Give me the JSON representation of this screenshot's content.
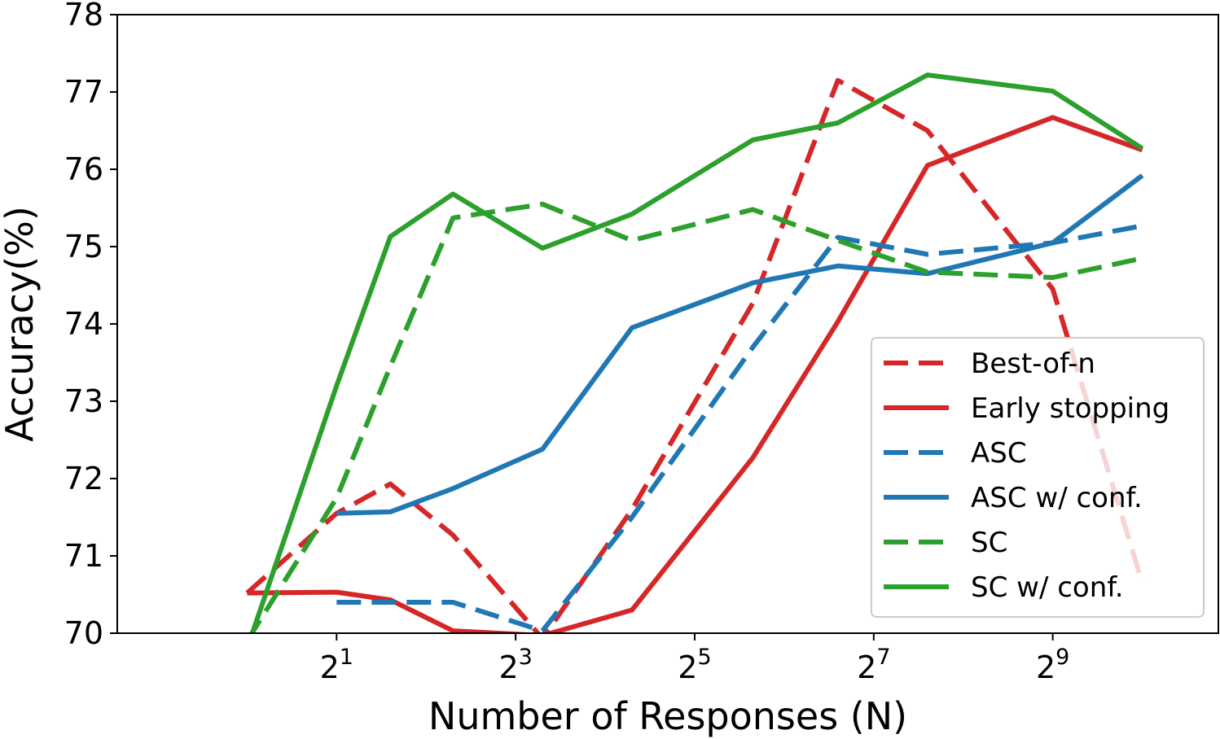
{
  "chart_data": {
    "type": "line",
    "title": "",
    "xlabel": "Number of Responses (N)",
    "ylabel": "Accuracy(%)",
    "xscale": "log2",
    "xlim_log2": [
      -1.45,
      10.85
    ],
    "ylim": [
      70,
      78
    ],
    "yticks": [
      70,
      71,
      72,
      73,
      74,
      75,
      76,
      77,
      78
    ],
    "xticks": [
      {
        "base": "2",
        "exp": "1",
        "log2": 1
      },
      {
        "base": "2",
        "exp": "3",
        "log2": 3
      },
      {
        "base": "2",
        "exp": "5",
        "log2": 5
      },
      {
        "base": "2",
        "exp": "7",
        "log2": 7
      },
      {
        "base": "2",
        "exp": "9",
        "log2": 9
      }
    ],
    "legend_position": "lower-right",
    "series": [
      {
        "name": "Best-of-n",
        "color": "#d62728",
        "dash": true,
        "x_log2": [
          0,
          1,
          1.6,
          2.3,
          3.3,
          4.3,
          5.65,
          6.6,
          7.6,
          9,
          10
        ],
        "values": [
          70.52,
          71.55,
          71.93,
          71.27,
          69.93,
          71.6,
          74.27,
          77.15,
          76.5,
          74.45,
          70.65
        ]
      },
      {
        "name": "Early stopping",
        "color": "#d62728",
        "dash": false,
        "x_log2": [
          0,
          1,
          1.6,
          2.3,
          3.3,
          4.3,
          5.65,
          6.6,
          7.6,
          9,
          10
        ],
        "values": [
          70.52,
          70.53,
          70.43,
          70.03,
          69.97,
          70.3,
          72.27,
          74.03,
          76.05,
          76.67,
          76.25
        ]
      },
      {
        "name": "ASC",
        "color": "#1f77b4",
        "dash": true,
        "x_log2": [
          1,
          1.6,
          2.3,
          3.3,
          4.3,
          5.65,
          6.6,
          7.6,
          9,
          10
        ],
        "values": [
          70.4,
          70.4,
          70.4,
          70.03,
          71.5,
          73.7,
          75.12,
          74.9,
          75.05,
          75.27
        ]
      },
      {
        "name": "ASC w/ conf.",
        "color": "#1f77b4",
        "dash": false,
        "x_log2": [
          1,
          1.6,
          2.3,
          3.3,
          4.3,
          5.65,
          6.6,
          7.6,
          9,
          10
        ],
        "values": [
          71.55,
          71.57,
          71.87,
          72.38,
          73.95,
          74.53,
          74.75,
          74.65,
          75.05,
          75.92
        ]
      },
      {
        "name": "SC",
        "color": "#2ca02c",
        "dash": true,
        "x_log2": [
          0,
          1,
          1.6,
          2.3,
          3.3,
          4.3,
          5.65,
          6.6,
          7.6,
          9,
          10
        ],
        "values": [
          69.9,
          71.75,
          73.45,
          75.37,
          75.55,
          75.08,
          75.48,
          75.08,
          74.67,
          74.6,
          74.85
        ]
      },
      {
        "name": "SC w/ conf.",
        "color": "#2ca02c",
        "dash": false,
        "x_log2": [
          0,
          1,
          1.6,
          2.3,
          3.3,
          4.3,
          5.65,
          6.6,
          7.6,
          9,
          10
        ],
        "values": [
          69.8,
          73.2,
          75.13,
          75.68,
          74.98,
          75.42,
          76.38,
          76.6,
          77.22,
          77.01,
          76.27
        ]
      }
    ]
  }
}
